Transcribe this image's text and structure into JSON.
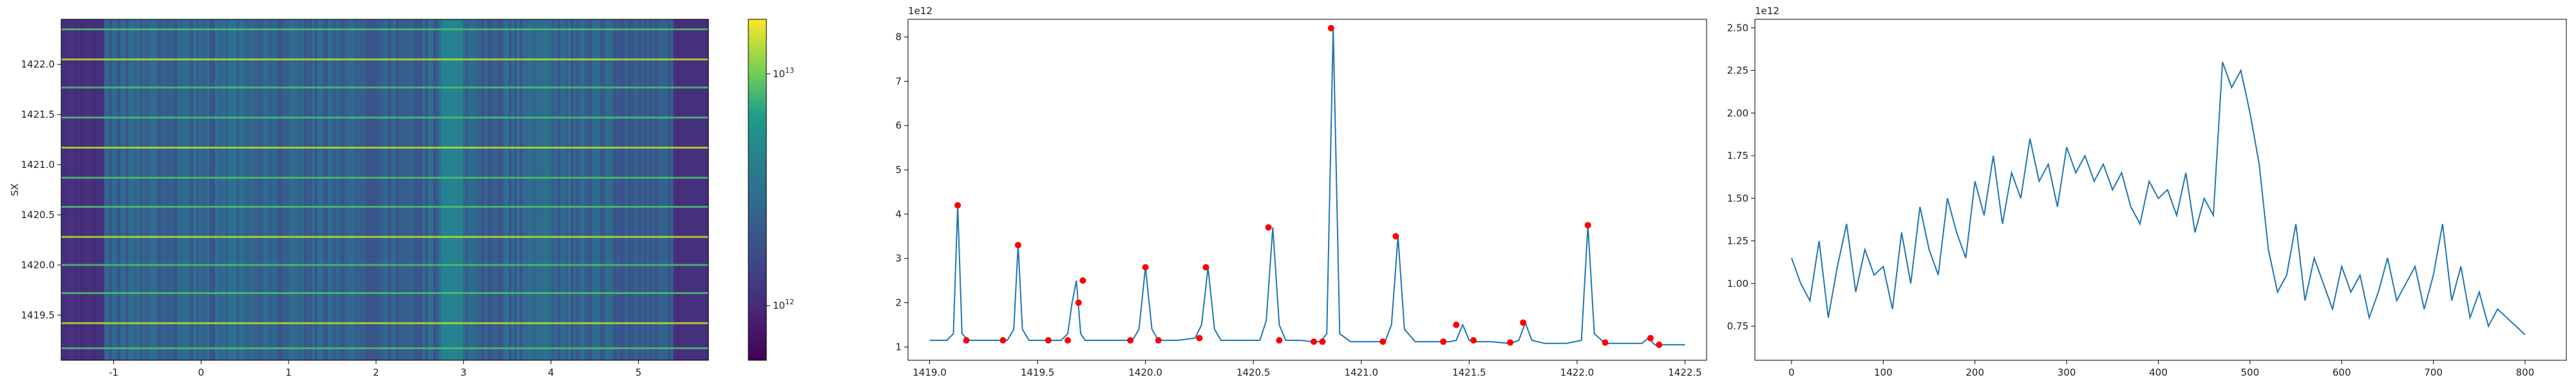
{
  "chart_data": [
    {
      "type": "heatmap",
      "ylabel": "SX",
      "xlabel": "",
      "xlim": [
        -1.6,
        5.8
      ],
      "ylim": [
        1419.05,
        1422.45
      ],
      "x_ticks": [
        "-1",
        "0",
        "1",
        "2",
        "3",
        "4",
        "5"
      ],
      "y_ticks": [
        "1419.5",
        "1420.0",
        "1420.5",
        "1421.0",
        "1421.5",
        "1422.0"
      ],
      "colormap": "viridis (log scale)",
      "colorbar_ticks": [
        "10^12",
        "10^13"
      ],
      "bright_rows": [
        1419.17,
        1419.42,
        1419.72,
        1420.0,
        1420.28,
        1420.58,
        1420.87,
        1421.17,
        1421.47,
        1421.77,
        1422.05,
        1422.35
      ],
      "bright_column_band": [
        2.75,
        3.0
      ],
      "colors": {
        "low": "#440154",
        "mid": "#31688e",
        "high": "#fde725"
      }
    },
    {
      "type": "line",
      "offset_label": "1e12",
      "xlabel": "",
      "ylabel": "",
      "xlim": [
        1418.9,
        1422.6
      ],
      "ylim": [
        0.7,
        8.4
      ],
      "x_ticks": [
        "1419.0",
        "1419.5",
        "1420.0",
        "1420.5",
        "1421.0",
        "1421.5",
        "1422.0",
        "1422.5"
      ],
      "y_ticks": [
        "1",
        "2",
        "3",
        "4",
        "5",
        "6",
        "7",
        "8"
      ],
      "series": [
        {
          "x": [
            1419.0,
            1419.08,
            1419.11,
            1419.13,
            1419.15,
            1419.18,
            1419.3,
            1419.36,
            1419.39,
            1419.41,
            1419.43,
            1419.46,
            1419.55,
            1419.61,
            1419.64,
            1419.66,
            1419.68,
            1419.7,
            1419.72,
            1419.75,
            1419.85,
            1419.94,
            1419.97,
            1420.0,
            1420.03,
            1420.06,
            1420.15,
            1420.23,
            1420.26,
            1420.29,
            1420.32,
            1420.35,
            1420.45,
            1420.53,
            1420.56,
            1420.59,
            1420.62,
            1420.65,
            1420.72,
            1420.77,
            1420.81,
            1420.84,
            1420.87,
            1420.9,
            1420.95,
            1421.05,
            1421.11,
            1421.14,
            1421.17,
            1421.2,
            1421.25,
            1421.33,
            1421.41,
            1421.44,
            1421.47,
            1421.5,
            1421.53,
            1421.6,
            1421.69,
            1421.73,
            1421.76,
            1421.79,
            1421.85,
            1421.95,
            1422.02,
            1422.05,
            1422.08,
            1422.13,
            1422.2,
            1422.3,
            1422.33,
            1422.36,
            1422.39,
            1422.45,
            1422.5
          ],
          "y": [
            1.15,
            1.15,
            1.3,
            4.2,
            1.3,
            1.15,
            1.15,
            1.15,
            1.4,
            3.3,
            1.4,
            1.15,
            1.15,
            1.15,
            1.3,
            2.0,
            2.5,
            1.3,
            1.15,
            1.15,
            1.15,
            1.15,
            1.4,
            2.8,
            1.4,
            1.15,
            1.15,
            1.2,
            1.5,
            2.8,
            1.4,
            1.15,
            1.15,
            1.15,
            1.6,
            3.7,
            1.5,
            1.15,
            1.15,
            1.12,
            1.12,
            1.3,
            8.2,
            1.3,
            1.12,
            1.12,
            1.12,
            1.5,
            3.5,
            1.4,
            1.12,
            1.12,
            1.12,
            1.15,
            1.5,
            1.15,
            1.12,
            1.12,
            1.08,
            1.15,
            1.55,
            1.15,
            1.08,
            1.08,
            1.15,
            3.75,
            1.3,
            1.08,
            1.08,
            1.08,
            1.2,
            1.05,
            1.05,
            1.05,
            1.05
          ]
        }
      ],
      "peaks": {
        "x": [
          1419.13,
          1419.17,
          1419.34,
          1419.41,
          1419.55,
          1419.64,
          1419.69,
          1419.71,
          1419.93,
          1420.0,
          1420.06,
          1420.25,
          1420.28,
          1420.57,
          1420.62,
          1420.78,
          1420.82,
          1420.86,
          1421.1,
          1421.16,
          1421.38,
          1421.44,
          1421.52,
          1421.69,
          1421.75,
          1422.05,
          1422.13,
          1422.34,
          1422.38
        ],
        "y": [
          4.2,
          1.15,
          1.15,
          3.3,
          1.15,
          1.15,
          2.0,
          2.5,
          1.15,
          2.8,
          1.15,
          1.2,
          2.8,
          3.7,
          1.15,
          1.12,
          1.12,
          8.2,
          1.12,
          3.5,
          1.12,
          1.5,
          1.15,
          1.1,
          1.55,
          3.75,
          1.1,
          1.2,
          1.05
        ],
        "color": "#ff0000"
      },
      "line_color": "#1f77b4"
    },
    {
      "type": "line",
      "offset_label": "1e12",
      "xlabel": "",
      "ylabel": "",
      "xlim": [
        -40,
        845
      ],
      "ylim": [
        0.55,
        2.55
      ],
      "x_ticks": [
        "0",
        "100",
        "200",
        "300",
        "400",
        "500",
        "600",
        "700",
        "800"
      ],
      "y_ticks": [
        "0.75",
        "1.00",
        "1.25",
        "1.50",
        "1.75",
        "2.00",
        "2.25",
        "2.50"
      ],
      "series": [
        {
          "x": [
            0,
            10,
            20,
            30,
            40,
            50,
            60,
            70,
            80,
            90,
            100,
            110,
            120,
            130,
            140,
            150,
            160,
            170,
            180,
            190,
            200,
            210,
            220,
            230,
            240,
            250,
            260,
            270,
            280,
            290,
            300,
            310,
            320,
            330,
            340,
            350,
            360,
            370,
            380,
            390,
            400,
            410,
            420,
            430,
            440,
            450,
            460,
            470,
            480,
            490,
            500,
            510,
            520,
            530,
            540,
            550,
            560,
            570,
            580,
            590,
            600,
            610,
            620,
            630,
            640,
            650,
            660,
            670,
            680,
            690,
            700,
            710,
            720,
            730,
            740,
            750,
            760,
            770,
            780,
            790,
            800
          ],
          "y": [
            1.15,
            1.0,
            0.9,
            1.25,
            0.8,
            1.1,
            1.35,
            0.95,
            1.2,
            1.05,
            1.1,
            0.85,
            1.3,
            1.0,
            1.45,
            1.2,
            1.05,
            1.5,
            1.3,
            1.15,
            1.6,
            1.4,
            1.75,
            1.35,
            1.65,
            1.5,
            1.85,
            1.6,
            1.7,
            1.45,
            1.8,
            1.65,
            1.75,
            1.6,
            1.7,
            1.55,
            1.65,
            1.45,
            1.35,
            1.6,
            1.5,
            1.55,
            1.4,
            1.65,
            1.3,
            1.5,
            1.4,
            2.3,
            2.15,
            2.25,
            2.0,
            1.7,
            1.2,
            0.95,
            1.05,
            1.35,
            0.9,
            1.15,
            1.0,
            0.85,
            1.1,
            0.95,
            1.05,
            0.8,
            0.95,
            1.15,
            0.9,
            1.0,
            1.1,
            0.85,
            1.05,
            1.35,
            0.9,
            1.1,
            0.8,
            0.95,
            0.75,
            0.85,
            0.8,
            0.75,
            0.7
          ]
        }
      ],
      "line_color": "#1f77b4"
    }
  ]
}
